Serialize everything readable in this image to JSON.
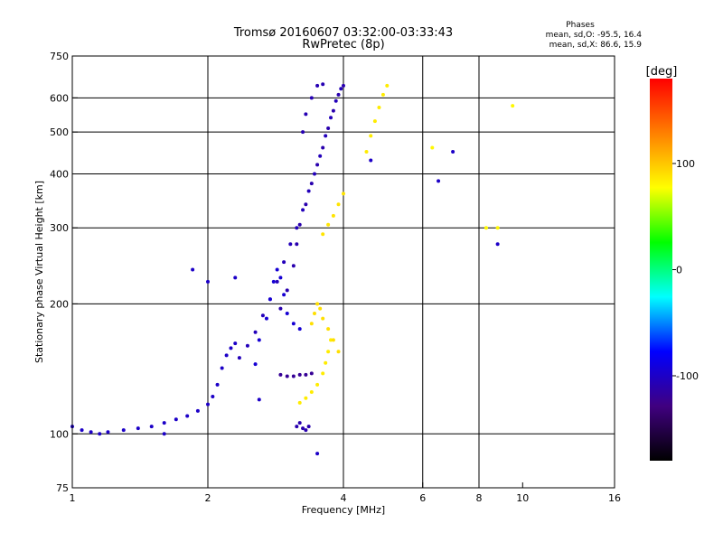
{
  "chart_data": {
    "type": "scatter",
    "title": "Tromsø 20160607 03:32:00-03:33:43",
    "subtitle": "RwPretec (8p)",
    "xlabel": "Frequency [MHz]",
    "ylabel": "Stationary phase Virtual Height [km]",
    "x_scale": "log",
    "y_scale": "log",
    "xlim": [
      1,
      16
    ],
    "ylim": [
      75,
      750
    ],
    "x_ticks": [
      1,
      2,
      4,
      6,
      8,
      10,
      16
    ],
    "y_ticks": [
      75,
      100,
      200,
      300,
      400,
      500,
      600,
      750
    ],
    "x_grid": [
      2,
      4,
      6,
      8
    ],
    "y_grid": [
      100,
      200,
      300,
      400,
      500,
      600
    ],
    "grid": true,
    "colorbar": {
      "label": "[deg]",
      "ticks": [
        100,
        0,
        -100
      ],
      "range": [
        -180,
        180
      ],
      "colors_top_to_bottom": [
        "#ff0000",
        "#ff8000",
        "#ffff00",
        "#00ff00",
        "#00ffff",
        "#0000ff",
        "#400080",
        "#000000"
      ]
    },
    "stats": {
      "heading": "Phases",
      "line1": "mean, sd,O: -95.5, 16.4",
      "line2": "mean, sd,X:  86.6, 15.9"
    },
    "traces": [
      {
        "mode": "O",
        "phase": -100,
        "points": [
          [
            1.0,
            104
          ],
          [
            1.05,
            102
          ],
          [
            1.1,
            101
          ],
          [
            1.15,
            100
          ],
          [
            1.2,
            101
          ],
          [
            1.3,
            102
          ],
          [
            1.4,
            103
          ],
          [
            1.5,
            104
          ],
          [
            1.6,
            106
          ],
          [
            1.7,
            108
          ],
          [
            1.8,
            110
          ],
          [
            1.9,
            113
          ],
          [
            2.0,
            117
          ],
          [
            2.05,
            122
          ],
          [
            2.1,
            130
          ],
          [
            2.15,
            142
          ],
          [
            2.2,
            152
          ],
          [
            2.25,
            158
          ],
          [
            2.3,
            162
          ]
        ]
      },
      {
        "mode": "O",
        "phase": -105,
        "points": [
          [
            2.35,
            150
          ],
          [
            2.45,
            160
          ],
          [
            2.55,
            172
          ],
          [
            2.65,
            188
          ],
          [
            2.75,
            205
          ],
          [
            2.85,
            225
          ],
          [
            2.95,
            250
          ],
          [
            3.05,
            275
          ],
          [
            3.15,
            300
          ],
          [
            3.25,
            330
          ],
          [
            3.35,
            365
          ],
          [
            3.45,
            400
          ],
          [
            3.55,
            440
          ],
          [
            3.65,
            490
          ],
          [
            3.75,
            540
          ],
          [
            3.85,
            590
          ],
          [
            3.95,
            630
          ]
        ]
      },
      {
        "mode": "O",
        "phase": -110,
        "points": [
          [
            2.9,
            195
          ],
          [
            3.0,
            215
          ],
          [
            3.1,
            245
          ],
          [
            3.15,
            275
          ],
          [
            3.2,
            305
          ],
          [
            3.3,
            340
          ],
          [
            3.4,
            380
          ],
          [
            3.5,
            420
          ],
          [
            3.6,
            460
          ],
          [
            3.7,
            510
          ],
          [
            3.8,
            560
          ],
          [
            3.9,
            610
          ],
          [
            4.0,
            640
          ]
        ]
      },
      {
        "mode": "O",
        "phase": -95,
        "points": [
          [
            2.55,
            145
          ],
          [
            2.6,
            165
          ],
          [
            2.7,
            185
          ],
          [
            2.75,
            205
          ],
          [
            2.8,
            225
          ],
          [
            2.85,
            240
          ],
          [
            2.9,
            230
          ],
          [
            2.95,
            210
          ],
          [
            3.0,
            190
          ],
          [
            3.1,
            180
          ],
          [
            3.2,
            175
          ]
        ]
      },
      {
        "mode": "O",
        "phase": -108,
        "points": [
          [
            3.25,
            500
          ],
          [
            3.3,
            550
          ],
          [
            3.4,
            600
          ],
          [
            3.5,
            640
          ],
          [
            3.6,
            645
          ]
        ]
      },
      {
        "mode": "O",
        "phase": -120,
        "points": [
          [
            2.9,
            137
          ],
          [
            3.0,
            136
          ],
          [
            3.1,
            136
          ],
          [
            3.2,
            137
          ],
          [
            3.3,
            137
          ],
          [
            3.4,
            138
          ]
        ]
      },
      {
        "mode": "O",
        "phase": -110,
        "points": [
          [
            3.15,
            104
          ],
          [
            3.2,
            106
          ],
          [
            3.25,
            103
          ],
          [
            3.3,
            102
          ],
          [
            3.35,
            104
          ]
        ]
      },
      {
        "mode": "X",
        "phase": 85,
        "points": [
          [
            3.2,
            118
          ],
          [
            3.3,
            121
          ],
          [
            3.4,
            125
          ],
          [
            3.5,
            130
          ],
          [
            3.6,
            138
          ],
          [
            3.65,
            146
          ],
          [
            3.7,
            155
          ],
          [
            3.75,
            165
          ]
        ]
      },
      {
        "mode": "X",
        "phase": 90,
        "points": [
          [
            3.4,
            180
          ],
          [
            3.45,
            190
          ],
          [
            3.5,
            200
          ],
          [
            3.55,
            195
          ],
          [
            3.6,
            185
          ],
          [
            3.7,
            175
          ],
          [
            3.8,
            165
          ],
          [
            3.9,
            155
          ]
        ]
      },
      {
        "mode": "X",
        "phase": 88,
        "points": [
          [
            3.6,
            290
          ],
          [
            3.7,
            305
          ],
          [
            3.8,
            320
          ],
          [
            3.9,
            340
          ],
          [
            4.0,
            360
          ]
        ]
      },
      {
        "mode": "X",
        "phase": 85,
        "points": [
          [
            4.5,
            450
          ],
          [
            4.6,
            490
          ],
          [
            4.7,
            530
          ],
          [
            4.8,
            570
          ],
          [
            4.9,
            610
          ],
          [
            5.0,
            640
          ]
        ]
      },
      {
        "mode": "X",
        "phase": 80,
        "points": [
          [
            6.3,
            460
          ],
          [
            9.5,
            575
          ],
          [
            8.8,
            300
          ],
          [
            8.3,
            300
          ]
        ]
      },
      {
        "mode": "O",
        "phase": -100,
        "points": [
          [
            2.0,
            225
          ],
          [
            1.85,
            240
          ],
          [
            2.3,
            230
          ],
          [
            6.5,
            385
          ],
          [
            7.0,
            450
          ],
          [
            8.8,
            275
          ],
          [
            4.6,
            430
          ],
          [
            2.6,
            120
          ],
          [
            1.6,
            100
          ],
          [
            3.5,
            90
          ]
        ]
      }
    ]
  }
}
